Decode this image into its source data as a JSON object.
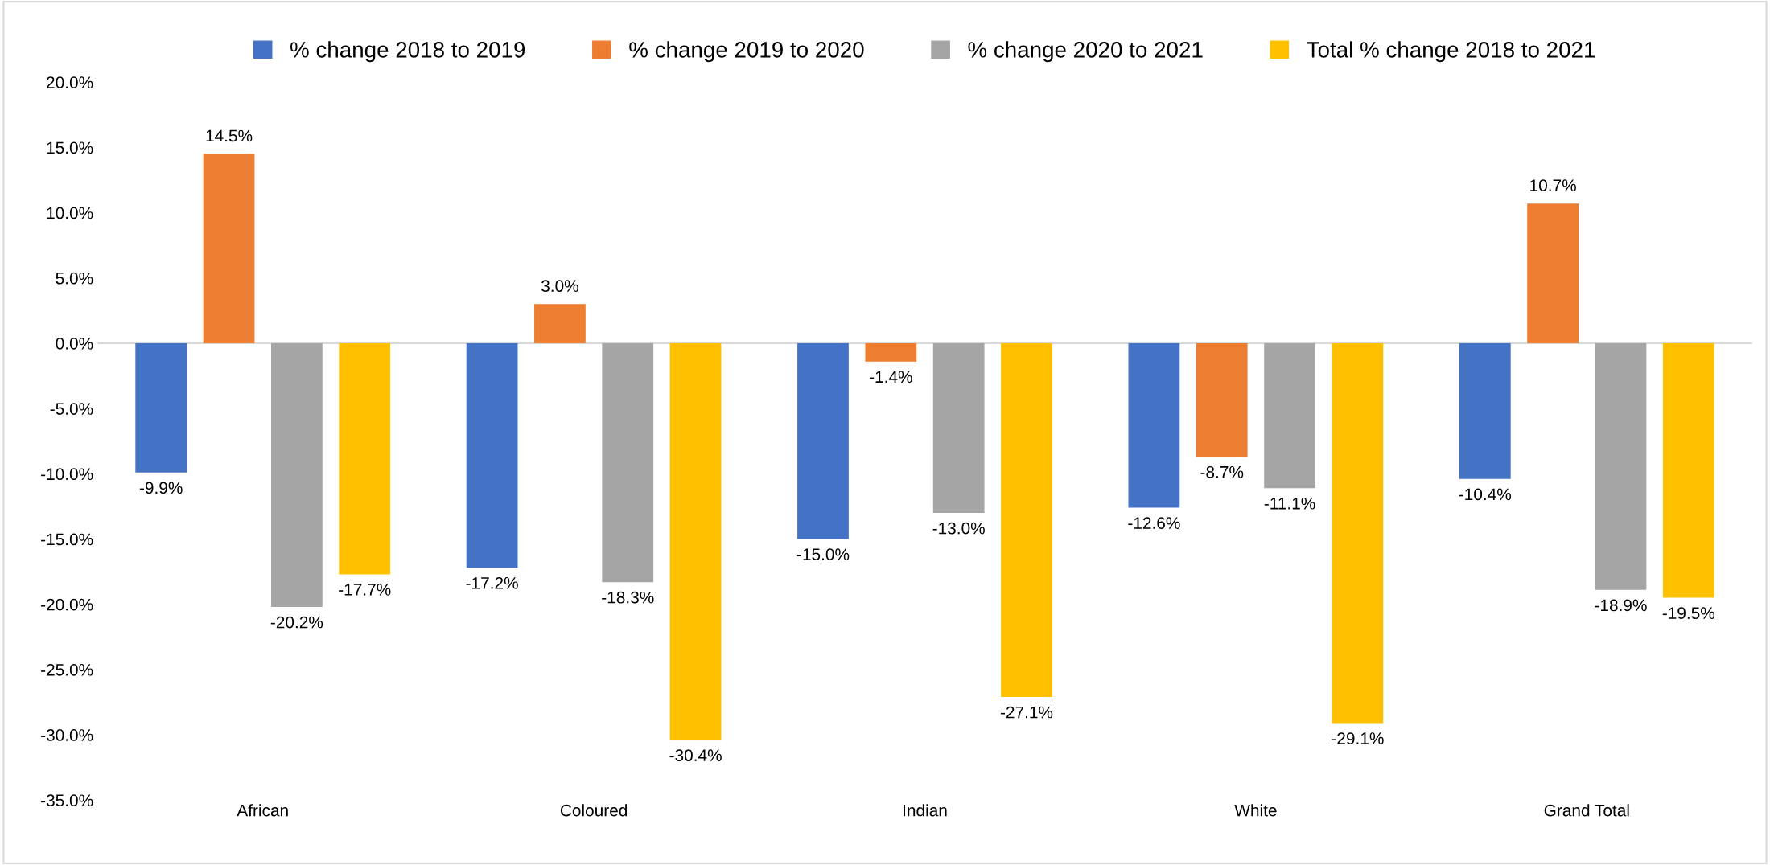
{
  "chart_data": {
    "type": "bar",
    "categories": [
      "African",
      "Coloured",
      "Indian",
      "White",
      "Grand Total"
    ],
    "series": [
      {
        "name": "% change 2018 to 2019",
        "color": "#4472c4",
        "values": [
          -9.9,
          -17.2,
          -15.0,
          -12.6,
          -10.4
        ],
        "value_labels": [
          "-9.9%",
          "-17.2%",
          "-15.0%",
          "-12.6%",
          "-10.4%"
        ]
      },
      {
        "name": "% change 2019 to 2020",
        "color": "#ed7d31",
        "values": [
          14.5,
          3.0,
          -1.4,
          -8.7,
          10.7
        ],
        "value_labels": [
          "14.5%",
          "3.0%",
          "-1.4%",
          "-8.7%",
          "10.7%"
        ]
      },
      {
        "name": "% change 2020 to 2021",
        "color": "#a5a5a5",
        "values": [
          -20.2,
          -18.3,
          -13.0,
          -11.1,
          -18.9
        ],
        "value_labels": [
          "-20.2%",
          "-18.3%",
          "-13.0%",
          "-11.1%",
          "-18.9%"
        ]
      },
      {
        "name": "Total % change 2018 to 2021",
        "color": "#ffc000",
        "values": [
          -17.7,
          -30.4,
          -27.1,
          -29.1,
          -19.5
        ],
        "value_labels": [
          "-17.7%",
          "-30.4%",
          "-27.1%",
          "-29.1%",
          "-19.5%"
        ]
      }
    ],
    "ylim": [
      -35,
      20
    ],
    "yticks": [
      {
        "value": -35,
        "label": "-35.0%"
      },
      {
        "value": -30,
        "label": "-30.0%"
      },
      {
        "value": -25,
        "label": "-25.0%"
      },
      {
        "value": -20,
        "label": "-20.0%"
      },
      {
        "value": -15,
        "label": "-15.0%"
      },
      {
        "value": -10,
        "label": "-10.0%"
      },
      {
        "value": -5,
        "label": "-5.0%"
      },
      {
        "value": 0,
        "label": "0.0%"
      },
      {
        "value": 5,
        "label": "5.0%"
      },
      {
        "value": 10,
        "label": "10.0%"
      },
      {
        "value": 15,
        "label": "15.0%"
      },
      {
        "value": 20,
        "label": "20.0%"
      }
    ],
    "ref_lines": [
      {
        "axis": "y",
        "value": 0,
        "color": "#d9d9d9"
      }
    ],
    "grid": false,
    "legend": "top"
  }
}
